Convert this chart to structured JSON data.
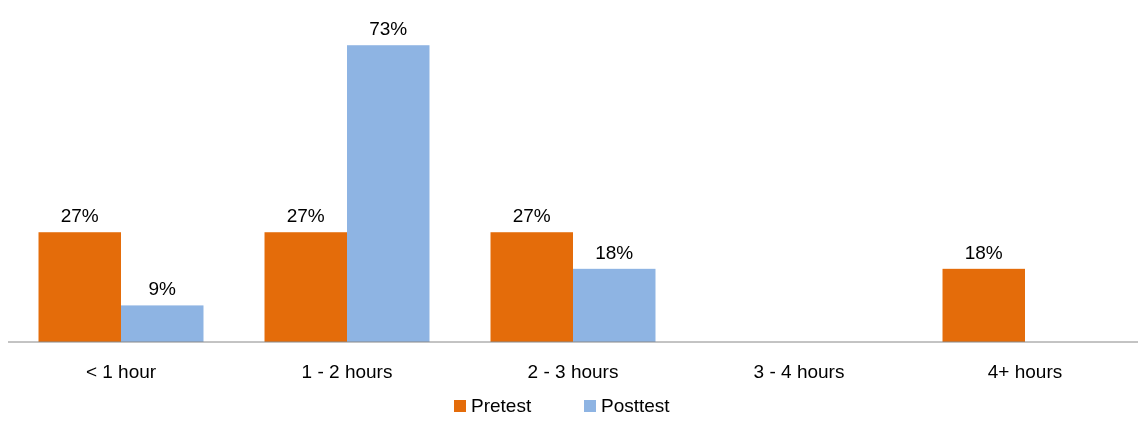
{
  "chart_data": {
    "type": "bar",
    "categories": [
      "< 1 hour",
      "1 - 2 hours",
      "2 - 3 hours",
      "3 - 4 hours",
      "4+ hours"
    ],
    "series": [
      {
        "name": "Pretest",
        "color": "#e46c0a",
        "values": [
          27,
          27,
          27,
          0,
          18
        ],
        "value_labels": [
          "27%",
          "27%",
          "27%",
          null,
          "18%"
        ]
      },
      {
        "name": "Posttest",
        "color": "#8eb4e3",
        "values": [
          9,
          73,
          18,
          0,
          0
        ],
        "value_labels": [
          "9%",
          "73%",
          "18%",
          null,
          null
        ]
      }
    ],
    "legend": "bottom"
  }
}
